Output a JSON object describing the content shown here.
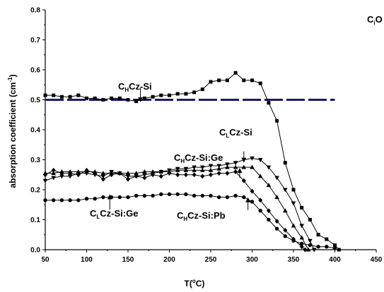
{
  "chart_data": {
    "type": "line",
    "xlabel_main": "T(",
    "xlabel_sup": "o",
    "xlabel_tail": "C)",
    "ylabel_main": "absorption coefficient (cm",
    "ylabel_sup": "-1",
    "ylabel_tail": ")",
    "xlim": [
      50,
      450
    ],
    "ylim": [
      0.0,
      0.8
    ],
    "x_ticks": [
      "50",
      "100",
      "150",
      "200",
      "250",
      "300",
      "350",
      "400",
      "450"
    ],
    "y_ticks": [
      "0.0",
      "0.1",
      "0.2",
      "0.3",
      "0.4",
      "0.5",
      "0.6",
      "0.7",
      "0.8"
    ],
    "grid": false,
    "corner_label": {
      "main": "C",
      "sub": "i",
      "tail": "O"
    },
    "reference_line": {
      "y": 0.5,
      "x_start": 50,
      "x_end": 400,
      "color": "#1a1a6e"
    },
    "series": [
      {
        "name": "CHCz-Si",
        "marker": "square",
        "points": [
          [
            50,
            0.515
          ],
          [
            60,
            0.515
          ],
          [
            70,
            0.51
          ],
          [
            80,
            0.51
          ],
          [
            90,
            0.515
          ],
          [
            100,
            0.505
          ],
          [
            110,
            0.505
          ],
          [
            120,
            0.5
          ],
          [
            130,
            0.505
          ],
          [
            140,
            0.505
          ],
          [
            150,
            0.5
          ],
          [
            160,
            0.495
          ],
          [
            170,
            0.505
          ],
          [
            180,
            0.51
          ],
          [
            190,
            0.515
          ],
          [
            200,
            0.515
          ],
          [
            210,
            0.52
          ],
          [
            220,
            0.52
          ],
          [
            230,
            0.525
          ],
          [
            240,
            0.535
          ],
          [
            250,
            0.56
          ],
          [
            260,
            0.565
          ],
          [
            270,
            0.565
          ],
          [
            280,
            0.59
          ],
          [
            290,
            0.565
          ],
          [
            300,
            0.565
          ],
          [
            310,
            0.555
          ],
          [
            320,
            0.49
          ],
          [
            330,
            0.43
          ],
          [
            340,
            0.29
          ],
          [
            350,
            0.2
          ],
          [
            360,
            0.14
          ],
          [
            370,
            0.1
          ],
          [
            380,
            0.05
          ],
          [
            390,
            0.035
          ],
          [
            400,
            0.015
          ],
          [
            405,
            0.0
          ]
        ]
      },
      {
        "name": "CLCz-Si",
        "marker": "triangle-down",
        "points": [
          [
            50,
            0.23
          ],
          [
            60,
            0.24
          ],
          [
            70,
            0.245
          ],
          [
            80,
            0.245
          ],
          [
            90,
            0.255
          ],
          [
            100,
            0.255
          ],
          [
            110,
            0.25
          ],
          [
            120,
            0.245
          ],
          [
            130,
            0.26
          ],
          [
            140,
            0.255
          ],
          [
            150,
            0.245
          ],
          [
            160,
            0.245
          ],
          [
            170,
            0.25
          ],
          [
            180,
            0.255
          ],
          [
            190,
            0.26
          ],
          [
            200,
            0.265
          ],
          [
            210,
            0.27
          ],
          [
            220,
            0.27
          ],
          [
            230,
            0.275
          ],
          [
            240,
            0.275
          ],
          [
            250,
            0.28
          ],
          [
            260,
            0.28
          ],
          [
            270,
            0.285
          ],
          [
            280,
            0.29
          ],
          [
            290,
            0.3
          ],
          [
            300,
            0.305
          ],
          [
            310,
            0.3
          ],
          [
            320,
            0.275
          ],
          [
            330,
            0.24
          ],
          [
            340,
            0.2
          ],
          [
            350,
            0.155
          ],
          [
            360,
            0.08
          ],
          [
            370,
            0.03
          ],
          [
            375,
            0.0
          ]
        ]
      },
      {
        "name": "CHCz-Si:Ge",
        "marker": "triangle-up",
        "points": [
          [
            50,
            0.255
          ],
          [
            60,
            0.255
          ],
          [
            70,
            0.26
          ],
          [
            80,
            0.26
          ],
          [
            90,
            0.26
          ],
          [
            100,
            0.26
          ],
          [
            110,
            0.26
          ],
          [
            120,
            0.255
          ],
          [
            130,
            0.255
          ],
          [
            140,
            0.255
          ],
          [
            150,
            0.255
          ],
          [
            160,
            0.255
          ],
          [
            170,
            0.26
          ],
          [
            180,
            0.26
          ],
          [
            190,
            0.26
          ],
          [
            200,
            0.26
          ],
          [
            210,
            0.265
          ],
          [
            220,
            0.265
          ],
          [
            230,
            0.265
          ],
          [
            240,
            0.265
          ],
          [
            250,
            0.265
          ],
          [
            260,
            0.27
          ],
          [
            270,
            0.275
          ],
          [
            280,
            0.275
          ],
          [
            290,
            0.275
          ],
          [
            300,
            0.275
          ],
          [
            310,
            0.245
          ],
          [
            320,
            0.215
          ],
          [
            330,
            0.175
          ],
          [
            340,
            0.13
          ],
          [
            350,
            0.08
          ],
          [
            360,
            0.04
          ],
          [
            368,
            0.0
          ]
        ]
      },
      {
        "name": "CLCz-Si:Ge",
        "marker": "diamond",
        "points": [
          [
            50,
            0.25
          ],
          [
            60,
            0.265
          ],
          [
            70,
            0.255
          ],
          [
            80,
            0.255
          ],
          [
            90,
            0.25
          ],
          [
            100,
            0.265
          ],
          [
            110,
            0.255
          ],
          [
            120,
            0.235
          ],
          [
            130,
            0.25
          ],
          [
            140,
            0.255
          ],
          [
            150,
            0.235
          ],
          [
            160,
            0.245
          ],
          [
            170,
            0.24
          ],
          [
            180,
            0.25
          ],
          [
            190,
            0.245
          ],
          [
            200,
            0.255
          ],
          [
            210,
            0.25
          ],
          [
            220,
            0.25
          ],
          [
            230,
            0.25
          ],
          [
            240,
            0.245
          ],
          [
            250,
            0.25
          ],
          [
            260,
            0.255
          ],
          [
            270,
            0.255
          ],
          [
            280,
            0.26
          ],
          [
            290,
            0.23
          ],
          [
            300,
            0.195
          ],
          [
            310,
            0.165
          ],
          [
            320,
            0.13
          ],
          [
            330,
            0.095
          ],
          [
            340,
            0.065
          ],
          [
            350,
            0.035
          ],
          [
            360,
            0.01
          ],
          [
            364,
            0.0
          ]
        ]
      },
      {
        "name": "CHCz-Si:Pb",
        "marker": "circle",
        "points": [
          [
            50,
            0.165
          ],
          [
            60,
            0.165
          ],
          [
            70,
            0.165
          ],
          [
            80,
            0.165
          ],
          [
            90,
            0.165
          ],
          [
            100,
            0.17
          ],
          [
            110,
            0.17
          ],
          [
            120,
            0.175
          ],
          [
            130,
            0.175
          ],
          [
            140,
            0.175
          ],
          [
            150,
            0.175
          ],
          [
            160,
            0.18
          ],
          [
            170,
            0.18
          ],
          [
            180,
            0.18
          ],
          [
            190,
            0.185
          ],
          [
            200,
            0.185
          ],
          [
            210,
            0.185
          ],
          [
            220,
            0.185
          ],
          [
            230,
            0.18
          ],
          [
            240,
            0.18
          ],
          [
            250,
            0.18
          ],
          [
            260,
            0.175
          ],
          [
            270,
            0.175
          ],
          [
            280,
            0.18
          ],
          [
            290,
            0.175
          ],
          [
            300,
            0.16
          ],
          [
            310,
            0.13
          ],
          [
            320,
            0.1
          ],
          [
            330,
            0.07
          ],
          [
            340,
            0.045
          ],
          [
            350,
            0.03
          ],
          [
            360,
            0.02
          ],
          [
            370,
            0.015
          ],
          [
            380,
            0.01
          ],
          [
            390,
            0.01
          ],
          [
            400,
            0.005
          ]
        ]
      }
    ],
    "annotations": [
      {
        "id": "a1",
        "main": "C",
        "sub": "H",
        "tail": "Cz-Si",
        "arrow_to": [
          165,
          0.497
        ]
      },
      {
        "id": "a2",
        "main": "C",
        "sub": "L",
        "tail": "Cz-Si",
        "arrow_to": [
          290,
          0.295
        ]
      },
      {
        "id": "a3",
        "main": "C",
        "sub": "H",
        "tail": "Cz-Si:Ge",
        "arrow_to": [
          285,
          0.268
        ]
      },
      {
        "id": "a4",
        "main": "C",
        "sub": "L",
        "tail": "Cz-Si:Ge",
        "arrow_to": [
          128,
          0.18
        ]
      },
      {
        "id": "a5",
        "main": "C",
        "sub": "H",
        "tail": "Cz-Si:Pb",
        "arrow_to": [
          295,
          0.17
        ]
      }
    ]
  }
}
